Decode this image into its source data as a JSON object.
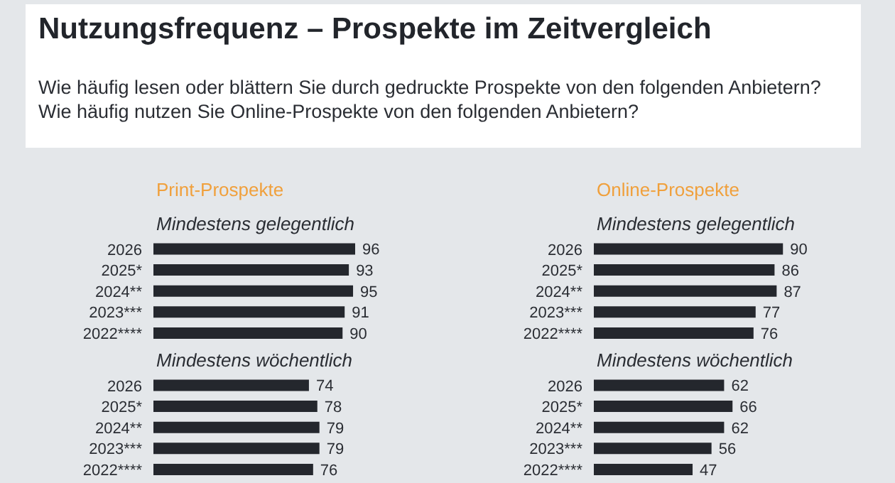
{
  "chart_data": [
    {
      "type": "other",
      "title": "Nutzungsfrequenz – Prospekte im Zeitvergleich",
      "subtitle": "Wie häufig lesen oder blättern Sie durch gedruckte Prospekte von den folgenden Anbietern? Wie häufig nutzen Sie Online-Prospekte von den folgenden Anbietern?"
    },
    {
      "type": "bar",
      "orientation": "horizontal",
      "title": "Print-Prospekte",
      "subtitle": "Mindestens gelegentlich",
      "categories": [
        "2026",
        "2025*",
        "2024**",
        "2023***",
        "2022****"
      ],
      "values": [
        96,
        93,
        95,
        91,
        90
      ],
      "color": "#24272d",
      "data_labels": true
    },
    {
      "type": "bar",
      "orientation": "horizontal",
      "subtitle": "Mindestens wöchentlich",
      "categories": [
        "2026",
        "2025*",
        "2024**",
        "2023***",
        "2022****"
      ],
      "values": [
        74,
        78,
        79,
        79,
        76
      ],
      "color": "#24272d",
      "data_labels": true
    },
    {
      "type": "bar",
      "orientation": "horizontal",
      "title": "Online-Prospekte",
      "subtitle": "Mindestens gelegentlich",
      "categories": [
        "2026",
        "2025*",
        "2024**",
        "2023***",
        "2022****"
      ],
      "values": [
        90,
        86,
        87,
        77,
        76
      ],
      "color": "#24272d",
      "data_labels": true
    },
    {
      "type": "bar",
      "orientation": "horizontal",
      "subtitle": "Mindestens wöchentlich",
      "categories": [
        "2026",
        "2025*",
        "2024**",
        "2023***",
        "2022****"
      ],
      "values": [
        62,
        66,
        62,
        56,
        47
      ],
      "color": "#24272d",
      "data_labels": true
    }
  ]
}
